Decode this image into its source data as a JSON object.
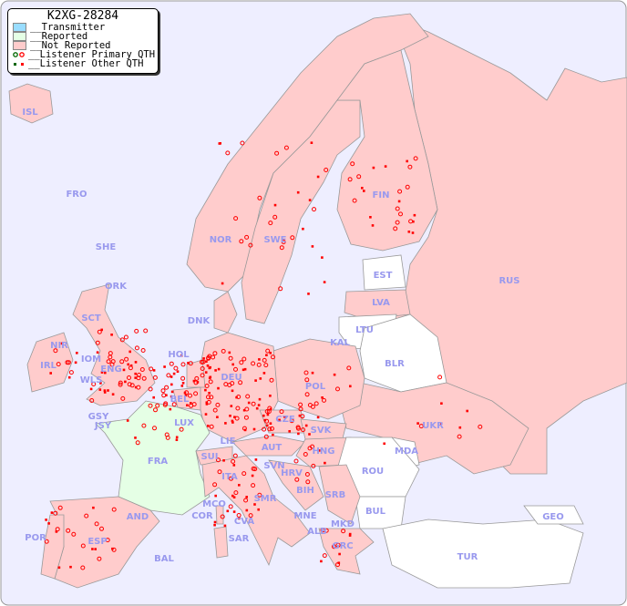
{
  "legend": {
    "title": "K2XG-28284",
    "items": [
      {
        "label": "__Transmitter",
        "color": "#99ddff"
      },
      {
        "label": "__Reported",
        "color": "#e5ffe5"
      },
      {
        "label": "__Not Reported",
        "color": "#ffcccc"
      },
      {
        "label": "__Listener Primary QTH",
        "marker": "circle"
      },
      {
        "label": "__Listener Other QTH",
        "marker": "square"
      }
    ]
  },
  "colors": {
    "sea": "#eeeeff",
    "not_reported": "#ffcccc",
    "reported": "#e5ffe5",
    "unlisted": "#ffffff",
    "label": "#9999ee",
    "marker": "#ff0000"
  },
  "countries": [
    "ISL",
    "FRO",
    "SHE",
    "ORK",
    "NOR",
    "SWE",
    "FIN",
    "EST",
    "LVA",
    "RUS",
    "LTU",
    "KAL",
    "BLR",
    "DNK",
    "HOL",
    "IRL",
    "NIR",
    "SCT",
    "IOM",
    "WLS",
    "ENG",
    "BEL",
    "DEU",
    "POL",
    "CZE",
    "SVK",
    "UKR",
    "MDA",
    "LUX",
    "GSY",
    "JSY",
    "FRA",
    "SUI",
    "LIE",
    "AUT",
    "HNG",
    "SVN",
    "HRV",
    "ROU",
    "ITA",
    "BIH",
    "SRB",
    "MCO",
    "COR",
    "SMR",
    "CVA",
    "MNE",
    "BUL",
    "ALB",
    "MKD",
    "GEO",
    "AND",
    "POR",
    "ESP",
    "SAR",
    "BAL",
    "GRC",
    "TUR"
  ]
}
